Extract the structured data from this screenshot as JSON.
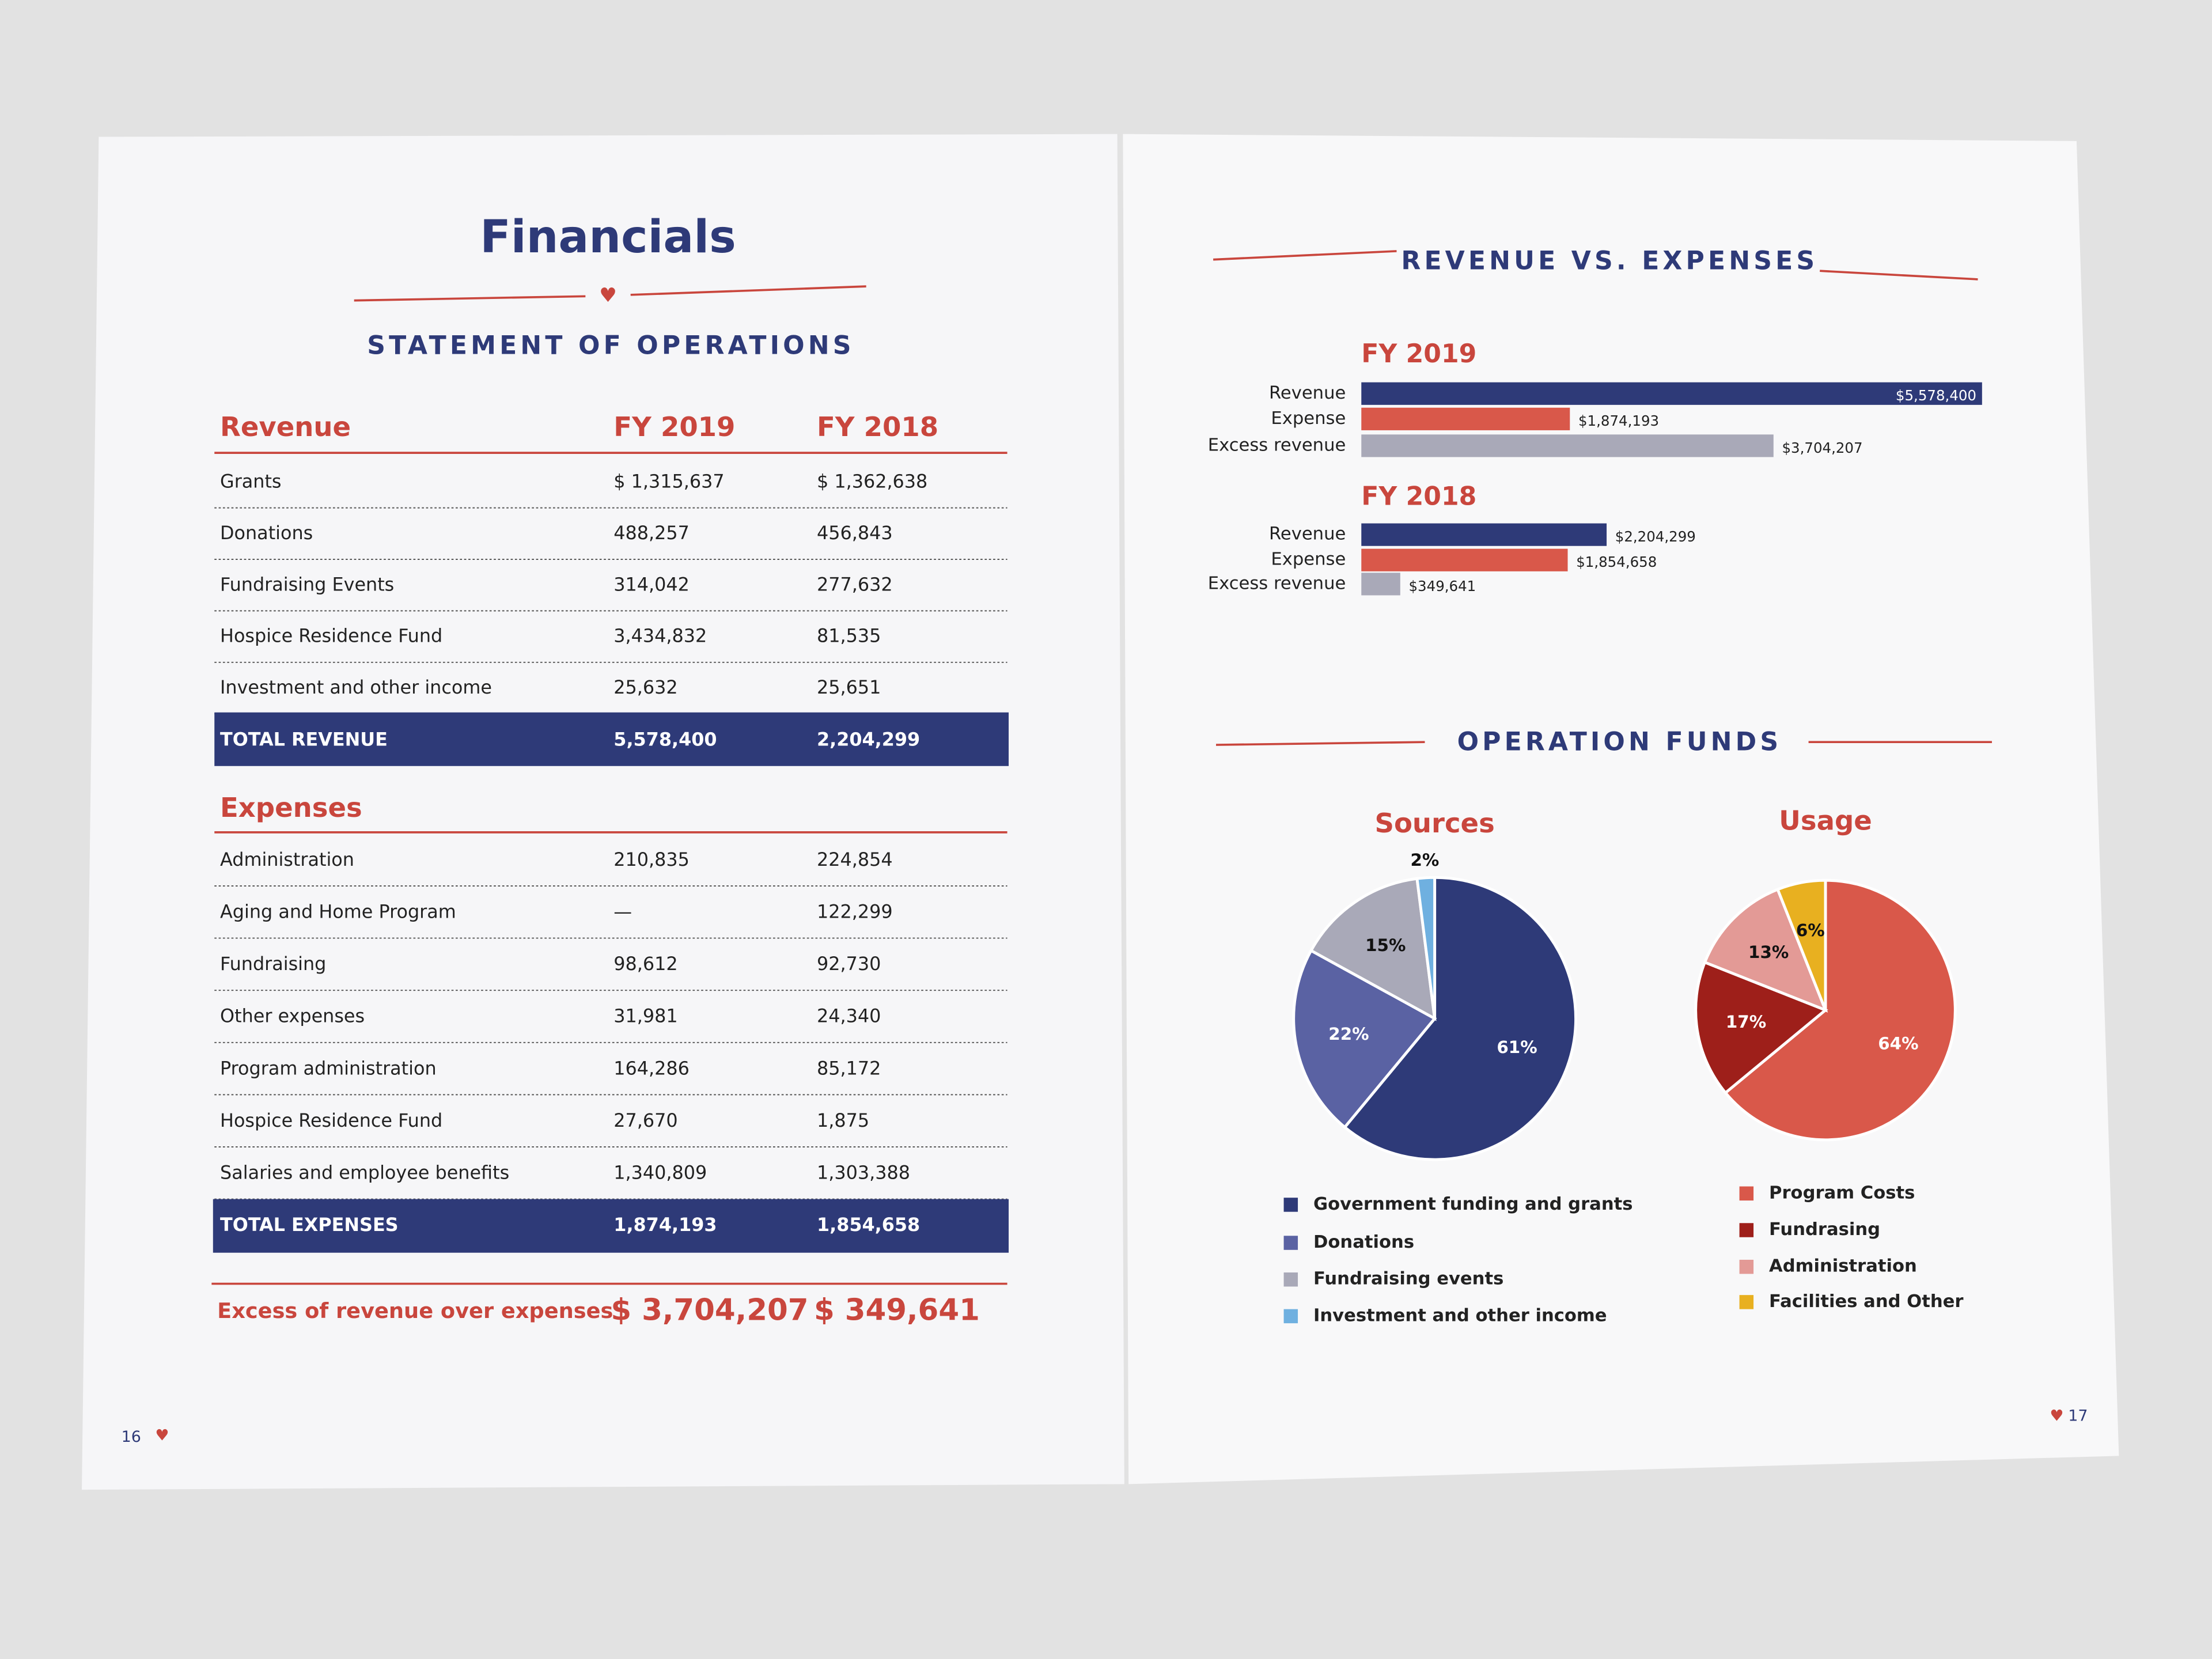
{
  "left_page": {
    "title": "Financials",
    "subtitle": "STATEMENT OF OPERATIONS",
    "page_number": "16",
    "revenue": {
      "header": [
        "Revenue",
        "FY 2019",
        "FY 2018"
      ],
      "rows": [
        [
          "Grants",
          "$ 1,315,637",
          "$ 1,362,638"
        ],
        [
          "Donations",
          "488,257",
          "456,843"
        ],
        [
          "Fundraising Events",
          "314,042",
          "277,632"
        ],
        [
          "Hospice Residence Fund",
          "3,434,832",
          "81,535"
        ],
        [
          "Investment and other income",
          "25,632",
          "25,651"
        ]
      ],
      "total": [
        "TOTAL REVENUE",
        "5,578,400",
        "2,204,299"
      ]
    },
    "expenses": {
      "header": "Expenses",
      "rows": [
        [
          "Administration",
          "210,835",
          "224,854"
        ],
        [
          "Aging and Home Program",
          "—",
          "122,299"
        ],
        [
          "Fundraising",
          "98,612",
          "92,730"
        ],
        [
          "Other expenses",
          "31,981",
          "24,340"
        ],
        [
          "Program administration",
          "164,286",
          "85,172"
        ],
        [
          "Hospice Residence Fund",
          "27,670",
          "1,875"
        ],
        [
          "Salaries and employee benefits",
          "1,340,809",
          "1,303,388"
        ]
      ],
      "total": [
        "TOTAL EXPENSES",
        "1,874,193",
        "1,854,658"
      ]
    },
    "excess": [
      "Excess of revenue over expenses",
      "$ 3,704,207",
      "$ 349,641"
    ]
  },
  "right_page": {
    "section_1": "REVENUE VS. EXPENSES",
    "section_2": "OPERATION FUNDS",
    "page_number": "17"
  },
  "chart_data": [
    {
      "type": "bar",
      "title": "FY 2019",
      "categories": [
        "Revenue",
        "Expense",
        "Excess revenue"
      ],
      "values": [
        5578400,
        1874193,
        3704207
      ],
      "value_labels": [
        "$5,578,400",
        "$1,874,193",
        "$3,704,207"
      ],
      "colors": [
        "#2e3a78",
        "#d9584a",
        "#a9a9b8"
      ]
    },
    {
      "type": "bar",
      "title": "FY 2018",
      "categories": [
        "Revenue",
        "Expense",
        "Excess revenue"
      ],
      "values": [
        2204299,
        1854658,
        349641
      ],
      "value_labels": [
        "$2,204,299",
        "$1,854,658",
        "$349,641"
      ],
      "colors": [
        "#2e3a78",
        "#d9584a",
        "#a9a9b8"
      ]
    },
    {
      "type": "pie",
      "title": "Sources",
      "categories": [
        "Government funding and grants",
        "Donations",
        "Fundraising events",
        "Investment and other income"
      ],
      "values": [
        61,
        22,
        15,
        2
      ],
      "value_labels": [
        "61%",
        "22%",
        "15%",
        "2%"
      ],
      "colors": [
        "#2e3a78",
        "#5a62a3",
        "#a9a9b8",
        "#6fb0e0"
      ]
    },
    {
      "type": "pie",
      "title": "Usage",
      "categories": [
        "Program Costs",
        "Fundrasing",
        "Administration",
        "Facilities and Other"
      ],
      "values": [
        64,
        17,
        13,
        6
      ],
      "value_labels": [
        "64%",
        "17%",
        "13%",
        "6%"
      ],
      "colors": [
        "#d9584a",
        "#9e1f1a",
        "#e39a96",
        "#e8b020"
      ]
    }
  ]
}
